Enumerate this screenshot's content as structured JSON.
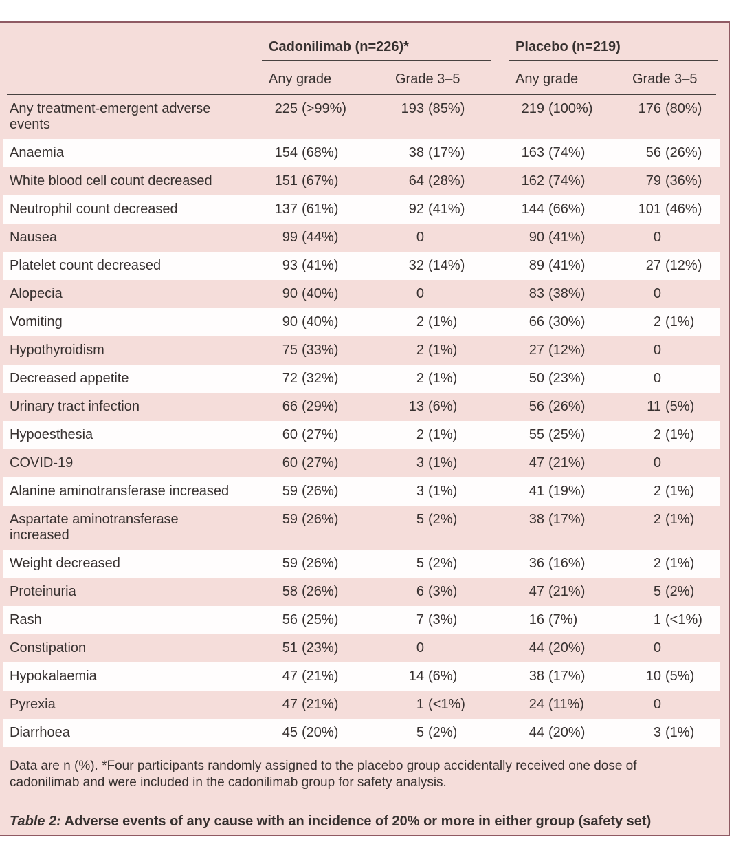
{
  "colors": {
    "panel_pink": "#f5ddda",
    "stripe_white": "#fffdfd",
    "rule_rose_top_bottom": "#8f5a63",
    "rule_rose_right": "#a4626c",
    "header_rule_dark": "#474140",
    "text": "#373130"
  },
  "table": {
    "groups": [
      {
        "label": "Cadonilimab (n=226)*"
      },
      {
        "label": "Placebo (n=219)"
      }
    ],
    "subheaders": [
      "Any grade",
      "Grade 3–5",
      "Any grade",
      "Grade 3–5"
    ],
    "rows": [
      {
        "label": "Any treatment-emergent adverse\nevents",
        "cells": [
          {
            "n": "225",
            "p": "(>99%)"
          },
          {
            "n": "193",
            "p": "(85%)"
          },
          {
            "n": "219",
            "p": "(100%)"
          },
          {
            "n": "176",
            "p": "(80%)"
          }
        ]
      },
      {
        "label": "Anaemia",
        "cells": [
          {
            "n": "154",
            "p": "(68%)"
          },
          {
            "n": "38",
            "p": "(17%)"
          },
          {
            "n": "163",
            "p": "(74%)"
          },
          {
            "n": "56",
            "p": "(26%)"
          }
        ]
      },
      {
        "label": "White blood cell count decreased",
        "cells": [
          {
            "n": "151",
            "p": "(67%)"
          },
          {
            "n": "64",
            "p": "(28%)"
          },
          {
            "n": "162",
            "p": "(74%)"
          },
          {
            "n": "79",
            "p": "(36%)"
          }
        ]
      },
      {
        "label": "Neutrophil count decreased",
        "cells": [
          {
            "n": "137",
            "p": "(61%)"
          },
          {
            "n": "92",
            "p": "(41%)"
          },
          {
            "n": "144",
            "p": "(66%)"
          },
          {
            "n": "101",
            "p": "(46%)"
          }
        ]
      },
      {
        "label": "Nausea",
        "cells": [
          {
            "n": "99",
            "p": "(44%)"
          },
          {
            "n": "0",
            "p": ""
          },
          {
            "n": "90",
            "p": "(41%)"
          },
          {
            "n": "0",
            "p": ""
          }
        ]
      },
      {
        "label": "Platelet count decreased",
        "cells": [
          {
            "n": "93",
            "p": "(41%)"
          },
          {
            "n": "32",
            "p": "(14%)"
          },
          {
            "n": "89",
            "p": "(41%)"
          },
          {
            "n": "27",
            "p": "(12%)"
          }
        ]
      },
      {
        "label": "Alopecia",
        "cells": [
          {
            "n": "90",
            "p": "(40%)"
          },
          {
            "n": "0",
            "p": ""
          },
          {
            "n": "83",
            "p": "(38%)"
          },
          {
            "n": "0",
            "p": ""
          }
        ]
      },
      {
        "label": "Vomiting",
        "cells": [
          {
            "n": "90",
            "p": "(40%)"
          },
          {
            "n": "2",
            "p": "(1%)"
          },
          {
            "n": "66",
            "p": "(30%)"
          },
          {
            "n": "2",
            "p": "(1%)"
          }
        ]
      },
      {
        "label": "Hypothyroidism",
        "cells": [
          {
            "n": "75",
            "p": "(33%)"
          },
          {
            "n": "2",
            "p": "(1%)"
          },
          {
            "n": "27",
            "p": "(12%)"
          },
          {
            "n": "0",
            "p": ""
          }
        ]
      },
      {
        "label": "Decreased appetite",
        "cells": [
          {
            "n": "72",
            "p": "(32%)"
          },
          {
            "n": "2",
            "p": "(1%)"
          },
          {
            "n": "50",
            "p": "(23%)"
          },
          {
            "n": "0",
            "p": ""
          }
        ]
      },
      {
        "label": "Urinary tract infection",
        "cells": [
          {
            "n": "66",
            "p": "(29%)"
          },
          {
            "n": "13",
            "p": "(6%)"
          },
          {
            "n": "56",
            "p": "(26%)"
          },
          {
            "n": "11",
            "p": "(5%)"
          }
        ]
      },
      {
        "label": "Hypoesthesia",
        "cells": [
          {
            "n": "60",
            "p": "(27%)"
          },
          {
            "n": "2",
            "p": "(1%)"
          },
          {
            "n": "55",
            "p": "(25%)"
          },
          {
            "n": "2",
            "p": "(1%)"
          }
        ]
      },
      {
        "label": "COVID-19",
        "cells": [
          {
            "n": "60",
            "p": "(27%)"
          },
          {
            "n": "3",
            "p": "(1%)"
          },
          {
            "n": "47",
            "p": "(21%)"
          },
          {
            "n": "0",
            "p": ""
          }
        ]
      },
      {
        "label": "Alanine aminotransferase increased",
        "cells": [
          {
            "n": "59",
            "p": "(26%)"
          },
          {
            "n": "3",
            "p": "(1%)"
          },
          {
            "n": "41",
            "p": "(19%)"
          },
          {
            "n": "2",
            "p": "(1%)"
          }
        ]
      },
      {
        "label": "Aspartate aminotransferase\nincreased",
        "cells": [
          {
            "n": "59",
            "p": "(26%)"
          },
          {
            "n": "5",
            "p": "(2%)"
          },
          {
            "n": "38",
            "p": "(17%)"
          },
          {
            "n": "2",
            "p": "(1%)"
          }
        ]
      },
      {
        "label": "Weight decreased",
        "cells": [
          {
            "n": "59",
            "p": "(26%)"
          },
          {
            "n": "5",
            "p": "(2%)"
          },
          {
            "n": "36",
            "p": "(16%)"
          },
          {
            "n": "2",
            "p": "(1%)"
          }
        ]
      },
      {
        "label": "Proteinuria",
        "cells": [
          {
            "n": "58",
            "p": "(26%)"
          },
          {
            "n": "6",
            "p": "(3%)"
          },
          {
            "n": "47",
            "p": "(21%)"
          },
          {
            "n": "5",
            "p": "(2%)"
          }
        ]
      },
      {
        "label": "Rash",
        "cells": [
          {
            "n": "56",
            "p": "(25%)"
          },
          {
            "n": "7",
            "p": "(3%)"
          },
          {
            "n": "16",
            "p": "(7%)"
          },
          {
            "n": "1",
            "p": "(<1%)"
          }
        ]
      },
      {
        "label": "Constipation",
        "cells": [
          {
            "n": "51",
            "p": "(23%)"
          },
          {
            "n": "0",
            "p": ""
          },
          {
            "n": "44",
            "p": "(20%)"
          },
          {
            "n": "0",
            "p": ""
          }
        ]
      },
      {
        "label": "Hypokalaemia",
        "cells": [
          {
            "n": "47",
            "p": "(21%)"
          },
          {
            "n": "14",
            "p": "(6%)"
          },
          {
            "n": "38",
            "p": "(17%)"
          },
          {
            "n": "10",
            "p": "(5%)"
          }
        ]
      },
      {
        "label": "Pyrexia",
        "cells": [
          {
            "n": "47",
            "p": "(21%)"
          },
          {
            "n": "1",
            "p": "(<1%)"
          },
          {
            "n": "24",
            "p": "(11%)"
          },
          {
            "n": "0",
            "p": ""
          }
        ]
      },
      {
        "label": "Diarrhoea",
        "cells": [
          {
            "n": "45",
            "p": "(20%)"
          },
          {
            "n": "5",
            "p": "(2%)"
          },
          {
            "n": "44",
            "p": "(20%)"
          },
          {
            "n": "3",
            "p": "(1%)"
          }
        ]
      }
    ],
    "footnote": "Data are n (%). *Four participants randomly assigned to the placebo group accidentally received one dose of\ncadonilimab and were included in the cadonilimab group for safety analysis.",
    "caption_prefix": "Table 2:",
    "caption_text": " Adverse events of any cause with an incidence of 20% or more in either group (safety set)"
  }
}
